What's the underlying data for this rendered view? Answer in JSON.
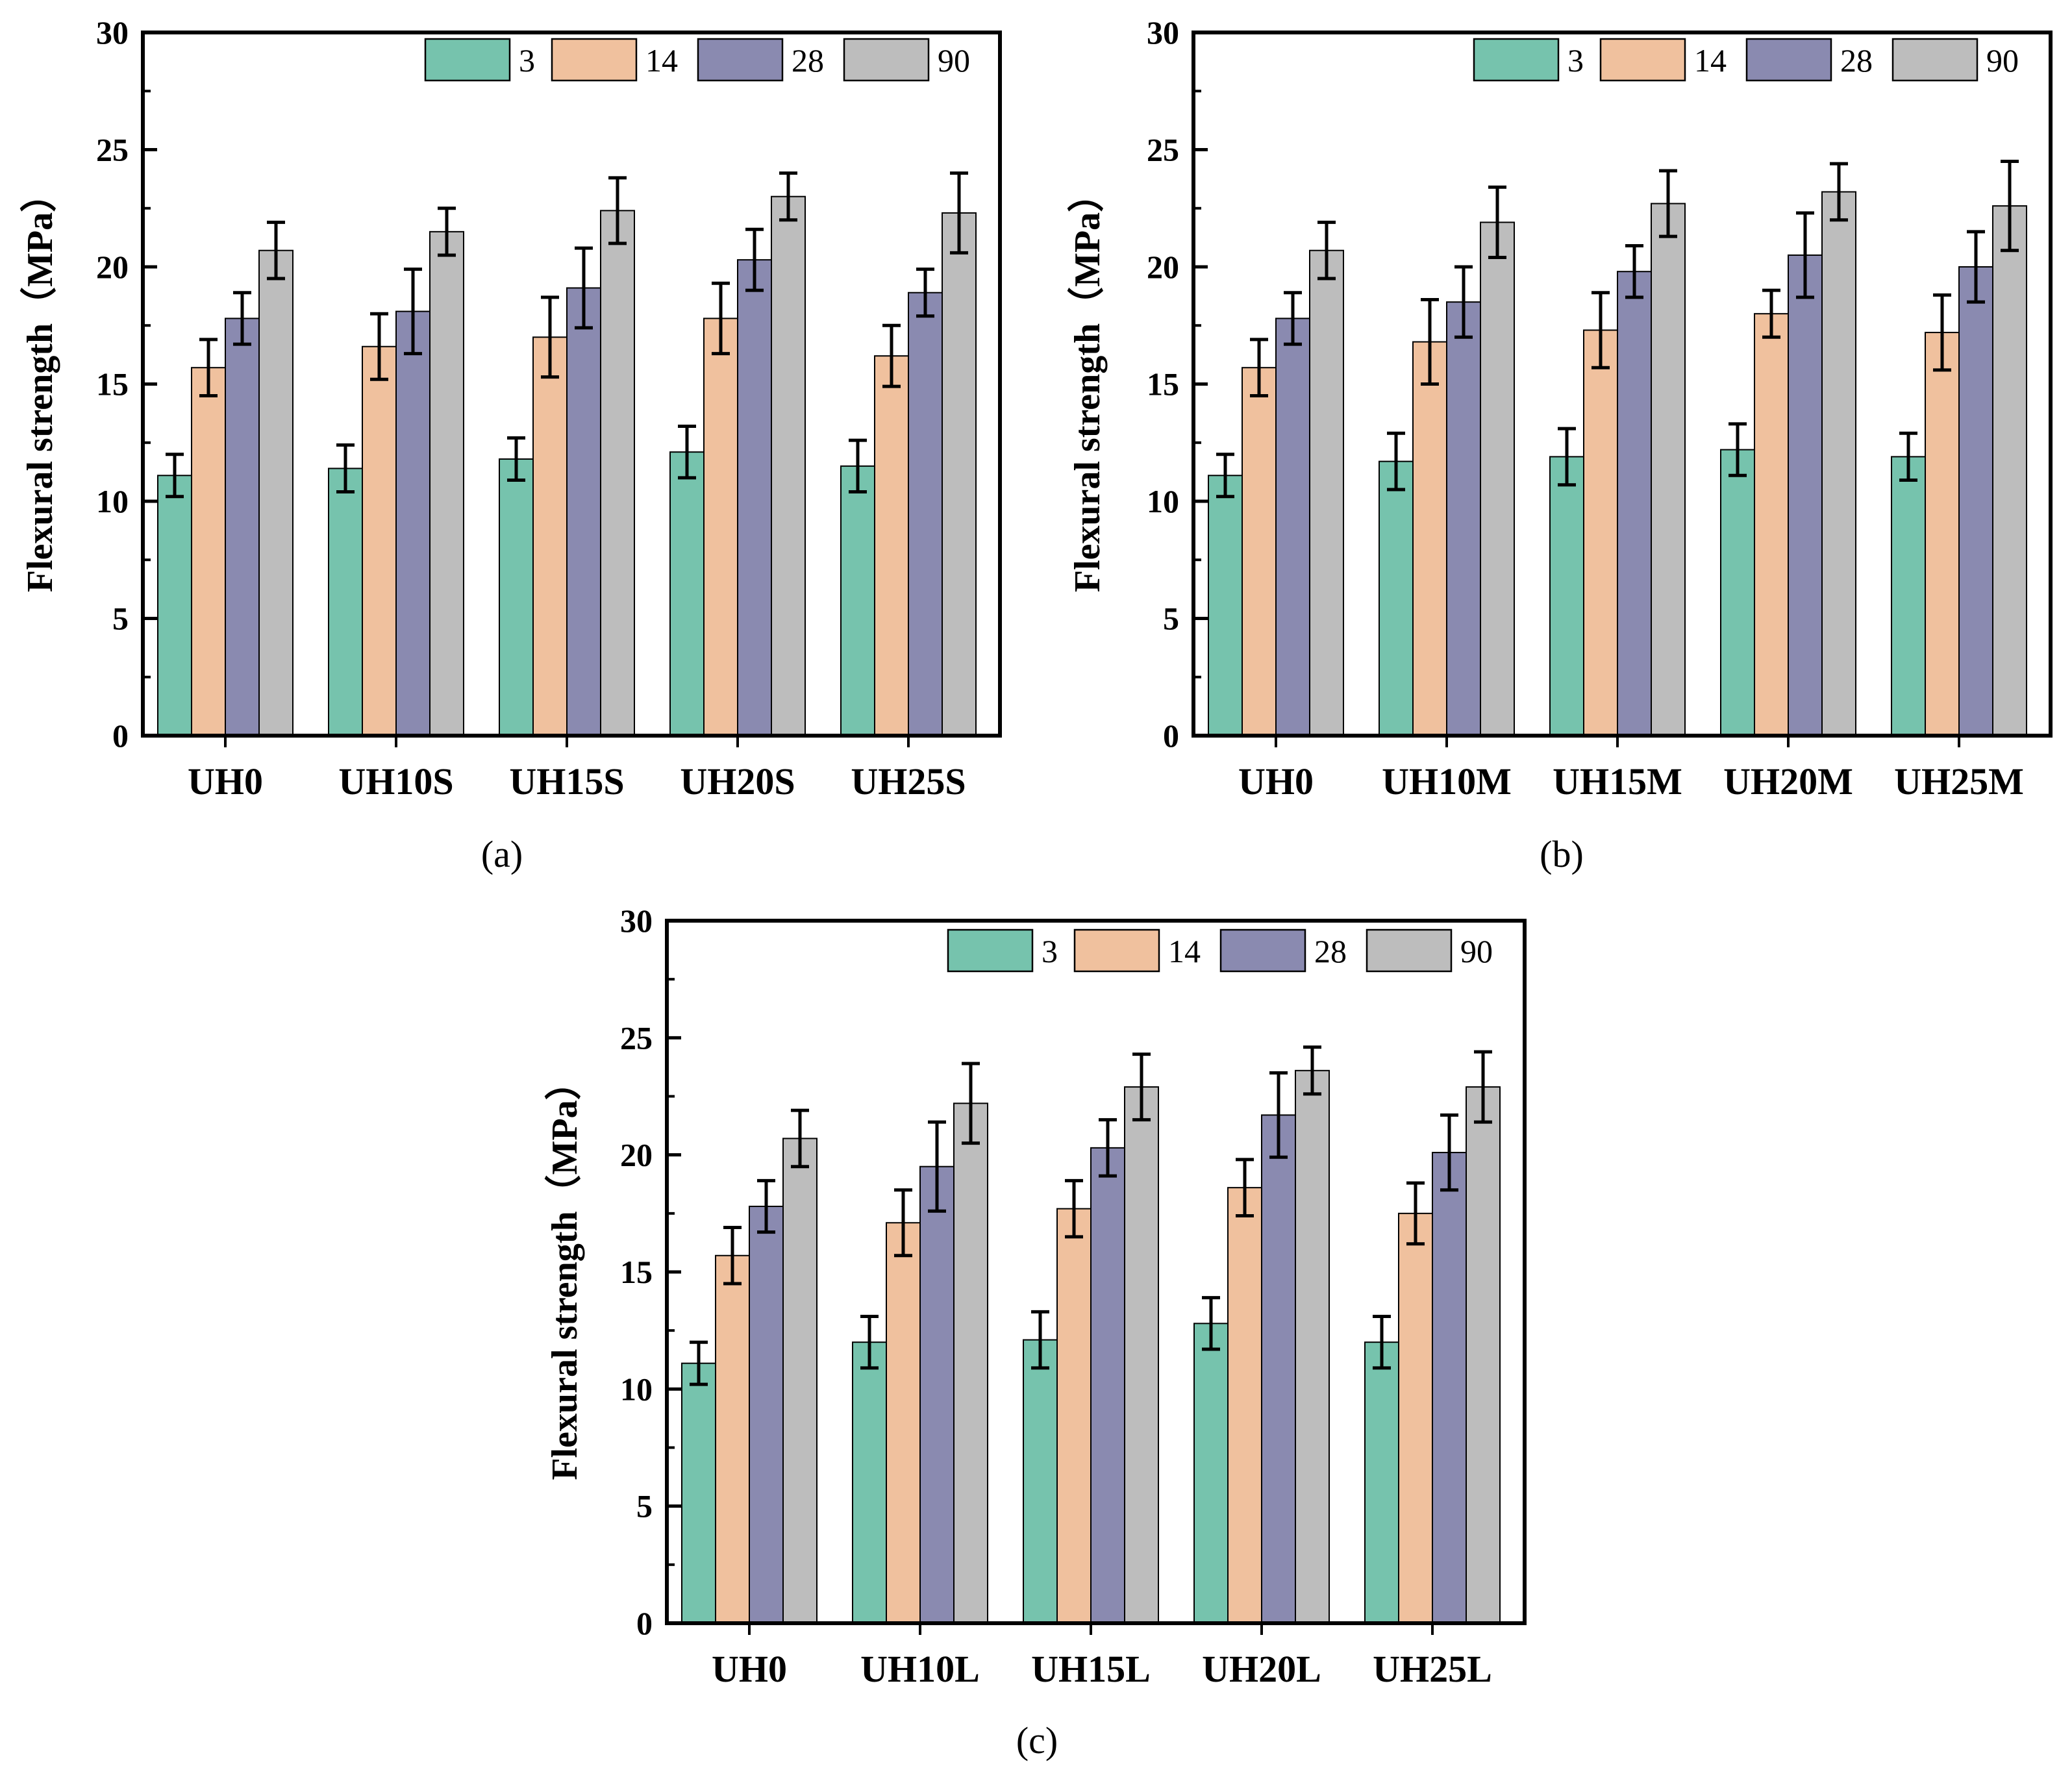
{
  "colors": {
    "3": "#76c3ad",
    "14": "#f0c19e",
    "28": "#8a8ab0",
    "90": "#bdbdbd",
    "axis": "#000000"
  },
  "chart_data": [
    {
      "type": "bar",
      "panel_label": "(a)",
      "ylabel": "Flexural strength（MPa）",
      "xlabel": "",
      "ylim": [
        0,
        30
      ],
      "yticks": [
        "0",
        "5",
        "10",
        "15",
        "20",
        "25",
        "30"
      ],
      "legend_position": "top-right",
      "categories": [
        "UH0",
        "UH10S",
        "UH15S",
        "UH20S",
        "UH25S"
      ],
      "series": [
        {
          "name": "3",
          "values": [
            11.1,
            11.4,
            11.8,
            12.1,
            11.5
          ],
          "errors": [
            0.9,
            1.0,
            0.9,
            1.1,
            1.1
          ]
        },
        {
          "name": "14",
          "values": [
            15.7,
            16.6,
            17.0,
            17.8,
            16.2
          ],
          "errors": [
            1.2,
            1.4,
            1.7,
            1.5,
            1.3
          ]
        },
        {
          "name": "28",
          "values": [
            17.8,
            18.1,
            19.1,
            20.3,
            18.9
          ],
          "errors": [
            1.1,
            1.8,
            1.7,
            1.3,
            1.0
          ]
        },
        {
          "name": "90",
          "values": [
            20.7,
            21.5,
            22.4,
            23.0,
            22.3
          ],
          "errors": [
            1.2,
            1.0,
            1.4,
            1.0,
            1.7
          ]
        }
      ]
    },
    {
      "type": "bar",
      "panel_label": "(b)",
      "ylabel": "Flexural strength（MPa）",
      "xlabel": "",
      "ylim": [
        0,
        30
      ],
      "yticks": [
        "0",
        "5",
        "10",
        "15",
        "20",
        "25",
        "30"
      ],
      "legend_position": "top-right",
      "categories": [
        "UH0",
        "UH10M",
        "UH15M",
        "UH20M",
        "UH25M"
      ],
      "series": [
        {
          "name": "3",
          "values": [
            11.1,
            11.7,
            11.9,
            12.2,
            11.9
          ],
          "errors": [
            0.9,
            1.2,
            1.2,
            1.1,
            1.0
          ]
        },
        {
          "name": "14",
          "values": [
            15.7,
            16.8,
            17.3,
            18.0,
            17.2
          ],
          "errors": [
            1.2,
            1.8,
            1.6,
            1.0,
            1.6
          ]
        },
        {
          "name": "28",
          "values": [
            17.8,
            18.5,
            19.8,
            20.5,
            20.0
          ],
          "errors": [
            1.1,
            1.5,
            1.1,
            1.8,
            1.5
          ]
        },
        {
          "name": "90",
          "values": [
            20.7,
            21.9,
            22.7,
            23.2,
            22.6
          ],
          "errors": [
            1.2,
            1.5,
            1.4,
            1.2,
            1.9
          ]
        }
      ]
    },
    {
      "type": "bar",
      "panel_label": "(c)",
      "ylabel": "Flexural strength（MPa）",
      "xlabel": "",
      "ylim": [
        0,
        30
      ],
      "yticks": [
        "0",
        "5",
        "10",
        "15",
        "20",
        "25",
        "30"
      ],
      "legend_position": "top-right",
      "categories": [
        "UH0",
        "UH10L",
        "UH15L",
        "UH20L",
        "UH25L"
      ],
      "series": [
        {
          "name": "3",
          "values": [
            11.1,
            12.0,
            12.1,
            12.8,
            12.0
          ],
          "errors": [
            0.9,
            1.1,
            1.2,
            1.1,
            1.1
          ]
        },
        {
          "name": "14",
          "values": [
            15.7,
            17.1,
            17.7,
            18.6,
            17.5
          ],
          "errors": [
            1.2,
            1.4,
            1.2,
            1.2,
            1.3
          ]
        },
        {
          "name": "28",
          "values": [
            17.8,
            19.5,
            20.3,
            21.7,
            20.1
          ],
          "errors": [
            1.1,
            1.9,
            1.2,
            1.8,
            1.6
          ]
        },
        {
          "name": "90",
          "values": [
            20.7,
            22.2,
            22.9,
            23.6,
            22.9
          ],
          "errors": [
            1.2,
            1.7,
            1.4,
            1.0,
            1.5
          ]
        }
      ]
    }
  ]
}
